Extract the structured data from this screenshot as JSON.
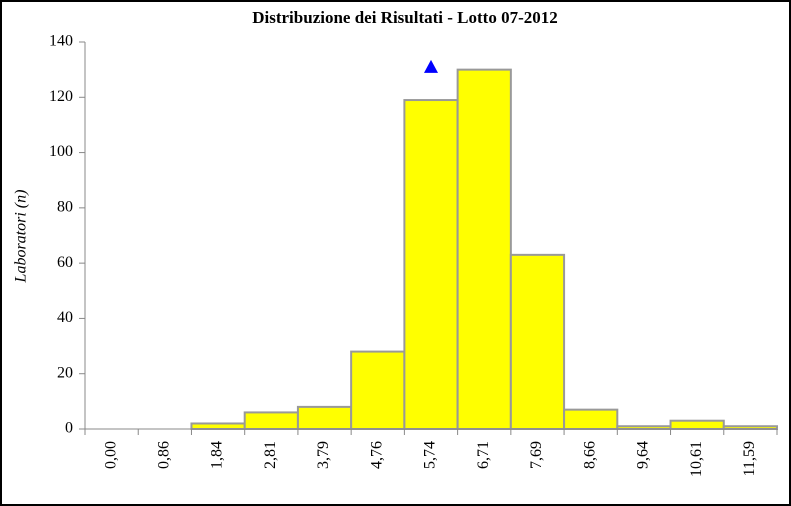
{
  "chart_data": {
    "type": "bar",
    "title": "Distribuzione dei Risultati  - Lotto 07-2012",
    "y_label": "Laboratori (n)",
    "categories": [
      "0,00",
      "0,86",
      "1,84",
      "2,81",
      "3,79",
      "4,76",
      "5,74",
      "6,71",
      "7,69",
      "8,66",
      "9,64",
      "10,61",
      "11,59"
    ],
    "values": [
      0,
      0,
      2,
      6,
      8,
      28,
      119,
      130,
      63,
      7,
      1,
      3,
      1
    ],
    "color": "#ffff00",
    "ylim": [
      0,
      140
    ],
    "yticks": [
      0,
      20,
      40,
      60,
      80,
      100,
      120,
      140
    ],
    "marker": {
      "category": 6,
      "value": 131,
      "color": "#0000ff"
    }
  }
}
